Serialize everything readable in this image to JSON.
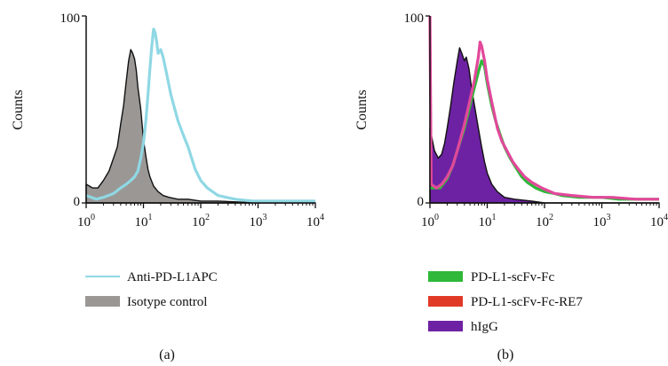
{
  "chart_data": [
    {
      "type": "area",
      "panel_label": "(a)",
      "ylabel": "Counts",
      "x_scale": "log",
      "xlim": [
        1,
        10000
      ],
      "ylim": [
        0,
        100
      ],
      "y_ticks": [
        "0",
        "100"
      ],
      "x_ticks": [
        {
          "base": "10",
          "exp": "0"
        },
        {
          "base": "10",
          "exp": "1"
        },
        {
          "base": "10",
          "exp": "2"
        },
        {
          "base": "10",
          "exp": "3"
        },
        {
          "base": "10",
          "exp": "4"
        }
      ],
      "legend_placement": "below",
      "series": [
        {
          "name": "Isotype control",
          "style": "filled",
          "color": "#9a9795",
          "edge": "#111111",
          "points": [
            [
              1,
              10
            ],
            [
              1.3,
              8
            ],
            [
              1.6,
              8
            ],
            [
              2,
              12
            ],
            [
              2.5,
              17
            ],
            [
              3,
              24
            ],
            [
              3.5,
              30
            ],
            [
              4,
              42
            ],
            [
              4.5,
              52
            ],
            [
              5,
              65
            ],
            [
              5.5,
              76
            ],
            [
              6,
              82
            ],
            [
              6.5,
              80
            ],
            [
              7,
              77
            ],
            [
              7.5,
              71
            ],
            [
              8,
              62
            ],
            [
              9,
              50
            ],
            [
              10,
              34
            ],
            [
              11,
              25
            ],
            [
              12,
              18
            ],
            [
              13,
              14
            ],
            [
              15,
              9
            ],
            [
              18,
              6
            ],
            [
              22,
              4
            ],
            [
              28,
              3
            ],
            [
              40,
              2
            ],
            [
              60,
              2
            ],
            [
              100,
              1
            ],
            [
              200,
              1
            ],
            [
              1000,
              0
            ],
            [
              10000,
              0
            ]
          ]
        },
        {
          "name": "Anti-PD-L1APC",
          "style": "line",
          "color": "#8fd8e4",
          "points": [
            [
              1,
              4
            ],
            [
              1.5,
              2
            ],
            [
              2,
              3
            ],
            [
              3,
              5
            ],
            [
              4,
              8
            ],
            [
              5,
              10
            ],
            [
              6,
              12
            ],
            [
              7,
              14
            ],
            [
              8,
              17
            ],
            [
              9,
              24
            ],
            [
              10,
              32
            ],
            [
              11,
              44
            ],
            [
              12,
              58
            ],
            [
              13,
              72
            ],
            [
              14,
              84
            ],
            [
              15,
              93
            ],
            [
              16,
              91
            ],
            [
              17,
              86
            ],
            [
              18,
              80
            ],
            [
              20,
              82
            ],
            [
              22,
              78
            ],
            [
              25,
              70
            ],
            [
              30,
              58
            ],
            [
              40,
              44
            ],
            [
              50,
              36
            ],
            [
              60,
              30
            ],
            [
              80,
              18
            ],
            [
              100,
              12
            ],
            [
              130,
              8
            ],
            [
              200,
              4
            ],
            [
              400,
              2
            ],
            [
              800,
              1
            ],
            [
              2000,
              1
            ],
            [
              10000,
              1
            ]
          ]
        }
      ]
    },
    {
      "type": "area",
      "panel_label": "(b)",
      "ylabel": "Counts",
      "x_scale": "log",
      "xlim": [
        1,
        10000
      ],
      "ylim": [
        0,
        100
      ],
      "y_ticks": [
        "0",
        "100"
      ],
      "x_ticks": [
        {
          "base": "10",
          "exp": "0"
        },
        {
          "base": "10",
          "exp": "1"
        },
        {
          "base": "10",
          "exp": "2"
        },
        {
          "base": "10",
          "exp": "3"
        },
        {
          "base": "10",
          "exp": "4"
        }
      ],
      "legend_placement": "below",
      "series": [
        {
          "name": "hIgG",
          "style": "filled",
          "color": "#6d22a3",
          "edge": "#111111",
          "points": [
            [
              1,
              40
            ],
            [
              1.2,
              28
            ],
            [
              1.4,
              24
            ],
            [
              1.6,
              26
            ],
            [
              1.8,
              32
            ],
            [
              2,
              40
            ],
            [
              2.3,
              52
            ],
            [
              2.6,
              64
            ],
            [
              3,
              76
            ],
            [
              3.3,
              83
            ],
            [
              3.6,
              80
            ],
            [
              4,
              76
            ],
            [
              4.3,
              78
            ],
            [
              4.8,
              72
            ],
            [
              5.3,
              62
            ],
            [
              6,
              52
            ],
            [
              7,
              40
            ],
            [
              8,
              30
            ],
            [
              9,
              22
            ],
            [
              10,
              16
            ],
            [
              12,
              10
            ],
            [
              15,
              6
            ],
            [
              20,
              3
            ],
            [
              30,
              2
            ],
            [
              60,
              1
            ],
            [
              100,
              0
            ],
            [
              10000,
              0
            ]
          ]
        },
        {
          "name": "PD-L1-scFv-Fc",
          "style": "line",
          "color": "#2fb83a",
          "points": [
            [
              1,
              8
            ],
            [
              1.5,
              8
            ],
            [
              2,
              13
            ],
            [
              2.5,
              20
            ],
            [
              3,
              28
            ],
            [
              4,
              40
            ],
            [
              5,
              52
            ],
            [
              6,
              62
            ],
            [
              7,
              70
            ],
            [
              8,
              76
            ],
            [
              9,
              73
            ],
            [
              10,
              64
            ],
            [
              12,
              52
            ],
            [
              14,
              44
            ],
            [
              17,
              36
            ],
            [
              20,
              30
            ],
            [
              25,
              24
            ],
            [
              30,
              20
            ],
            [
              40,
              14
            ],
            [
              50,
              11
            ],
            [
              70,
              8
            ],
            [
              100,
              6
            ],
            [
              150,
              5
            ],
            [
              200,
              4
            ],
            [
              400,
              3
            ],
            [
              1000,
              3
            ],
            [
              2000,
              2
            ],
            [
              5000,
              2
            ],
            [
              10000,
              2
            ]
          ]
        },
        {
          "name": "PD-L1-scFv-Fc-RE7",
          "style": "line",
          "color": "#e2489a",
          "points": [
            [
              1,
              100
            ],
            [
              1.05,
              10
            ],
            [
              1.3,
              8
            ],
            [
              1.6,
              10
            ],
            [
              2,
              14
            ],
            [
              2.5,
              20
            ],
            [
              3,
              28
            ],
            [
              4,
              42
            ],
            [
              5,
              55
            ],
            [
              6,
              66
            ],
            [
              7,
              78
            ],
            [
              7.5,
              86
            ],
            [
              8,
              84
            ],
            [
              9,
              76
            ],
            [
              10,
              66
            ],
            [
              12,
              54
            ],
            [
              15,
              40
            ],
            [
              18,
              33
            ],
            [
              22,
              28
            ],
            [
              28,
              22
            ],
            [
              35,
              18
            ],
            [
              45,
              14
            ],
            [
              60,
              11
            ],
            [
              90,
              8
            ],
            [
              150,
              5
            ],
            [
              300,
              4
            ],
            [
              700,
              3
            ],
            [
              1500,
              3
            ],
            [
              4000,
              2
            ],
            [
              10000,
              2
            ]
          ]
        }
      ]
    }
  ]
}
